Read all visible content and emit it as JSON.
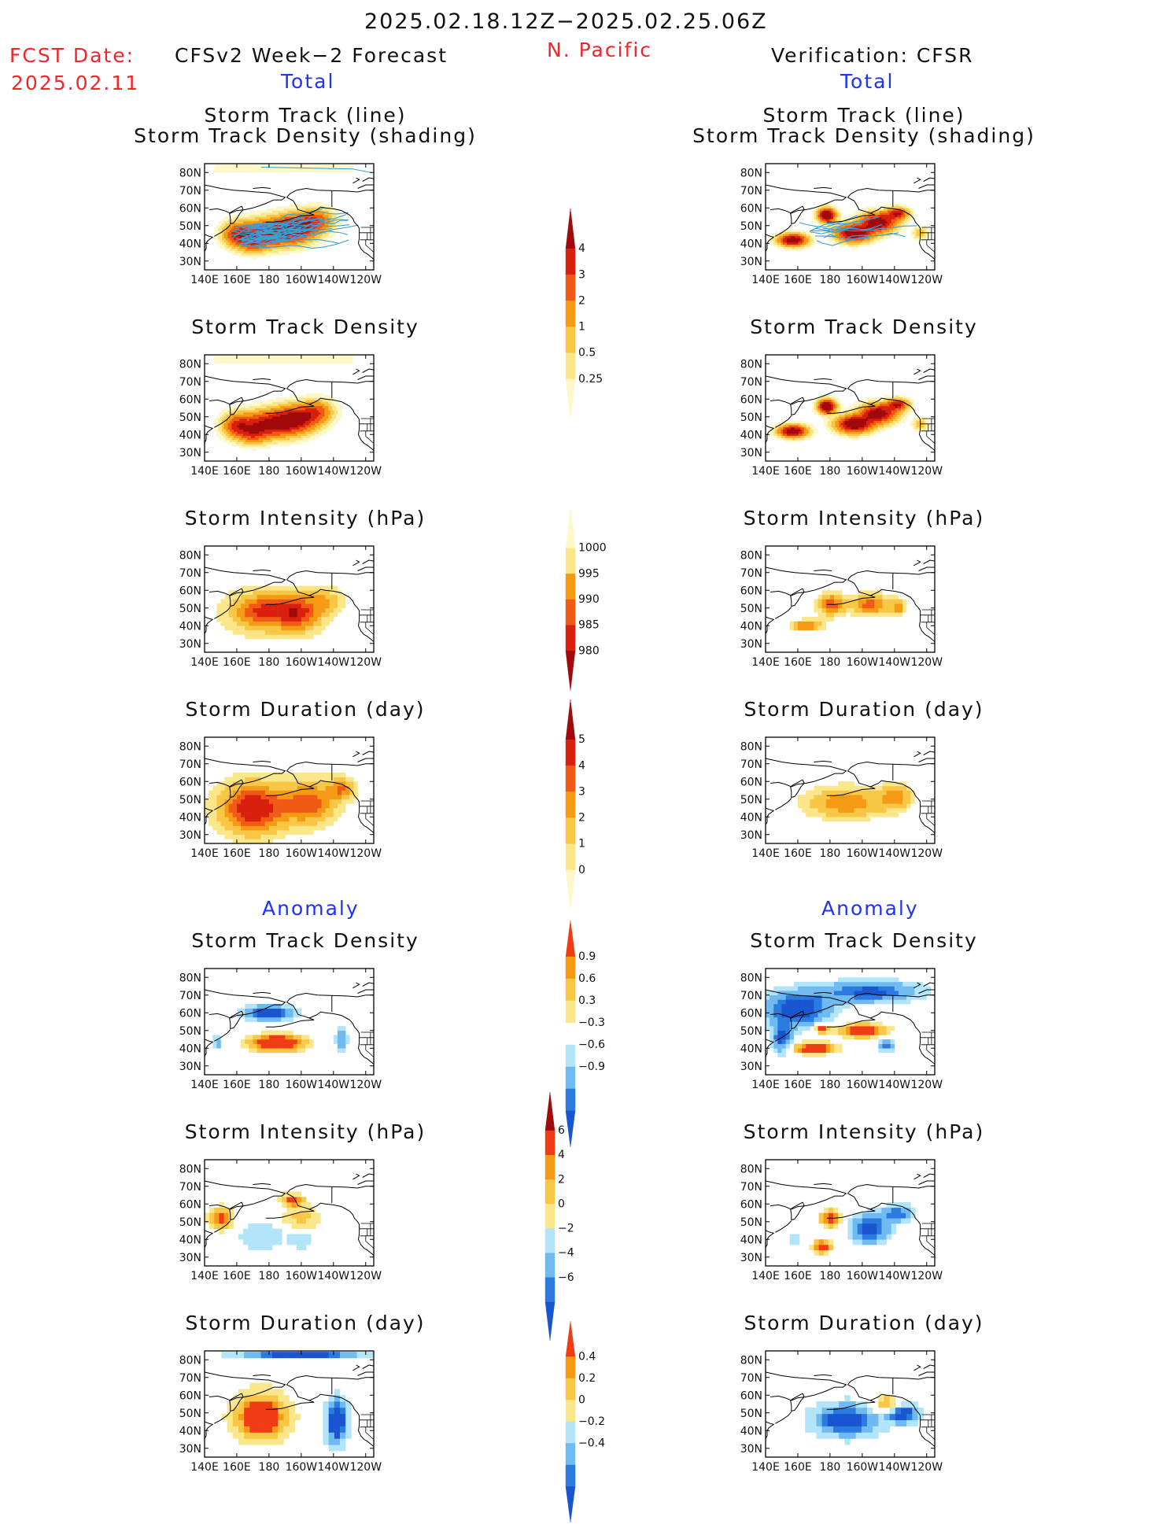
{
  "header": {
    "date_range": "2025.02.18.12Z−2025.02.25.06Z",
    "fcst_label": "FCST Date:",
    "fcst_date": "2025.02.11",
    "model_title": "CFSv2 Week−2 Forecast",
    "region": "N. Pacific",
    "verif_title": "Verification: CFSR",
    "total_left": "Total",
    "total_right": "Total",
    "anomaly_left": "Anomaly",
    "anomaly_right": "Anomaly"
  },
  "axes": {
    "lat_ticks": [
      "80N",
      "70N",
      "60N",
      "50N",
      "40N",
      "30N"
    ],
    "lon_ticks": [
      "140E",
      "160E",
      "180",
      "160W",
      "140W",
      "120W"
    ]
  },
  "colorbars": {
    "density": {
      "labels": [
        "4",
        "3",
        "2",
        "1",
        "0.5",
        "0.25"
      ],
      "colors": [
        "#a00a0a",
        "#d9200f",
        "#f05a14",
        "#f59a14",
        "#f7c745",
        "#fbe78a",
        "#fdf8c8"
      ]
    },
    "intensity": {
      "labels": [
        "1000",
        "995",
        "990",
        "985",
        "980"
      ],
      "colors": [
        "#fdf8c8",
        "#fbe78a",
        "#f59a14",
        "#f05a14",
        "#d9200f",
        "#a00a0a"
      ]
    },
    "duration": {
      "labels": [
        "5",
        "4",
        "3",
        "2",
        "1",
        "0"
      ],
      "colors": [
        "#a00a0a",
        "#d9200f",
        "#f05a14",
        "#f59a14",
        "#f7c745",
        "#fbe78a",
        "#fdf8c8"
      ]
    },
    "anom_density": {
      "labels": [
        "0.9",
        "0.6",
        "0.3",
        "−0.3",
        "−0.6",
        "−0.9"
      ],
      "colors": [
        "#f03c14",
        "#f59a14",
        "#f7c745",
        "#fbe78a",
        "#ffffff",
        "#b3e5fa",
        "#6fbaf0",
        "#2a7ae0",
        "#1a55d0"
      ]
    },
    "anom_intensity": {
      "labels": [
        "6",
        "4",
        "2",
        "0",
        "−2",
        "−4",
        "−6"
      ],
      "colors": [
        "#a00a0a",
        "#f03c14",
        "#f59a14",
        "#f7c745",
        "#fbe78a",
        "#b3e5fa",
        "#6fbaf0",
        "#2a7ae0",
        "#1a55d0"
      ]
    },
    "anom_duration": {
      "labels": [
        "0.4",
        "0.2",
        "0",
        "−0.2",
        "−0.4"
      ],
      "colors": [
        "#f03c14",
        "#f59a14",
        "#f7c745",
        "#fbe78a",
        "#b3e5fa",
        "#6fbaf0",
        "#2a7ae0",
        "#1a55d0"
      ]
    }
  },
  "chart_data": [
    {
      "type": "heatmap",
      "panel": "forecast-total-storm-track",
      "title_line1": "Storm Track (line)",
      "title_line2": "Storm Track Density (shading)",
      "xlabel": "",
      "ylabel": "",
      "peak_density": 4,
      "center": [
        180,
        45
      ]
    },
    {
      "type": "heatmap",
      "panel": "verification-total-storm-track",
      "title_line1": "Storm Track (line)",
      "title_line2": "Storm Track Density (shading)",
      "xlabel": "",
      "ylabel": "",
      "peak_density": 4,
      "center": [
        -160,
        50
      ]
    },
    {
      "type": "heatmap",
      "panel": "forecast-total-density",
      "title": "Storm Track Density",
      "xlabel": "",
      "ylabel": ""
    },
    {
      "type": "heatmap",
      "panel": "verification-total-density",
      "title": "Storm Track Density",
      "xlabel": "",
      "ylabel": ""
    },
    {
      "type": "heatmap",
      "panel": "forecast-total-intensity",
      "title": "Storm Intensity (hPa)",
      "xlabel": "",
      "ylabel": ""
    },
    {
      "type": "heatmap",
      "panel": "verification-total-intensity",
      "title": "Storm Intensity (hPa)",
      "xlabel": "",
      "ylabel": ""
    },
    {
      "type": "heatmap",
      "panel": "forecast-total-duration",
      "title": "Storm Duration (day)",
      "xlabel": "",
      "ylabel": ""
    },
    {
      "type": "heatmap",
      "panel": "verification-total-duration",
      "title": "Storm Duration (day)",
      "xlabel": "",
      "ylabel": ""
    },
    {
      "type": "heatmap",
      "panel": "forecast-anomaly-density",
      "title": "Storm Track Density",
      "xlabel": "",
      "ylabel": ""
    },
    {
      "type": "heatmap",
      "panel": "verification-anomaly-density",
      "title": "Storm Track Density",
      "xlabel": "",
      "ylabel": ""
    },
    {
      "type": "heatmap",
      "panel": "forecast-anomaly-intensity",
      "title": "Storm Intensity (hPa)",
      "xlabel": "",
      "ylabel": ""
    },
    {
      "type": "heatmap",
      "panel": "verification-anomaly-intensity",
      "title": "Storm Intensity (hPa)",
      "xlabel": "",
      "ylabel": ""
    },
    {
      "type": "heatmap",
      "panel": "forecast-anomaly-duration",
      "title": "Storm Duration (day)",
      "xlabel": "",
      "ylabel": ""
    },
    {
      "type": "heatmap",
      "panel": "verification-anomaly-duration",
      "title": "Storm Duration (day)",
      "xlabel": "",
      "ylabel": ""
    }
  ]
}
